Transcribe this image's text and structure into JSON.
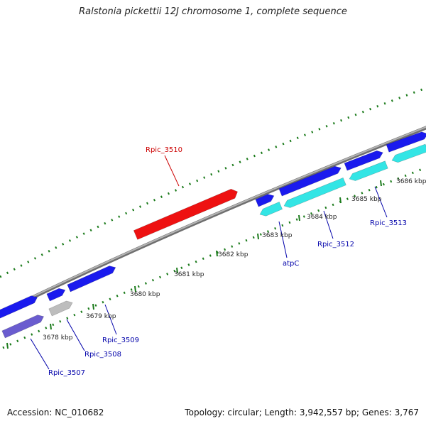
{
  "header": {
    "title": "Ralstonia pickettii 12J chromosome 1, complete sequence"
  },
  "footer": {
    "accession": "Accession: NC_010682",
    "summary": "Topology: circular; Length: 3,942,557 bp; Genes: 3,767"
  },
  "colors": {
    "backbone": "#8a8a8a",
    "tick": "#1a7a1a",
    "gene_blue": "#1a1aee",
    "gene_cyan": "#33e5e5",
    "gene_red": "#ee1111",
    "gene_gray": "#bdbdbd",
    "gene_purple": "#6a5ccf",
    "label_blue": "#0000aa",
    "label_red": "#cc0000"
  },
  "kbp_labels": [
    "3678 kbp",
    "3679 kbp",
    "3680 kbp",
    "3681 kbp",
    "3682 kbp",
    "3683 kbp",
    "3684 kbp",
    "3685 kbp",
    "3686 kbp"
  ],
  "gene_labels": [
    {
      "text": "Rpic_3510",
      "color": "label_red"
    },
    {
      "text": "atpC",
      "color": "label_blue"
    },
    {
      "text": "Rpic_3512",
      "color": "label_blue"
    },
    {
      "text": "Rpic_3513",
      "color": "label_blue"
    },
    {
      "text": "Rpic_3509",
      "color": "label_blue"
    },
    {
      "text": "Rpic_3508",
      "color": "label_blue"
    },
    {
      "text": "Rpic_3507",
      "color": "label_blue"
    }
  ]
}
